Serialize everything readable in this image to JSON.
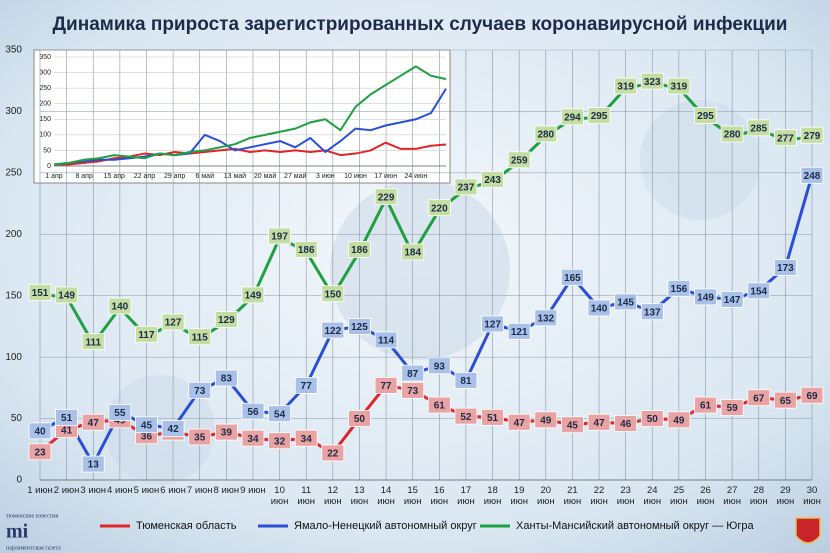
{
  "chart_data": [
    {
      "type": "line",
      "title": "Динамика прироста зарегистрированных случаев коронавирусной инфекции",
      "categories": [
        "1 июн",
        "2 июн",
        "3 июн",
        "4 июн",
        "5 июн",
        "6 июн",
        "7 июн",
        "8 июн",
        "9 июн",
        "10 июн",
        "11 июн",
        "12 июн",
        "13 июн",
        "14 июн",
        "15 июн",
        "16 июн",
        "17 июн",
        "18 июн",
        "19 июн",
        "20 июн",
        "21 июн",
        "22 июн",
        "23 июн",
        "24 июн",
        "25 июн",
        "26 июн",
        "27 июн",
        "28 июн",
        "29 июн",
        "30 июн"
      ],
      "series": [
        {
          "name": "Тюменская область",
          "color": "#e0262b",
          "label_fill": "#eaa3a3",
          "values": [
            23,
            41,
            47,
            49,
            36,
            39,
            35,
            39,
            34,
            32,
            34,
            22,
            50,
            77,
            73,
            61,
            52,
            51,
            47,
            49,
            45,
            47,
            46,
            50,
            49,
            61,
            59,
            67,
            65,
            69
          ]
        },
        {
          "name": "Ямало-Ненецкий автономный округ",
          "color": "#2a4fd6",
          "label_fill": "#a9c1e8",
          "values": [
            40,
            51,
            13,
            55,
            45,
            42,
            73,
            83,
            56,
            54,
            77,
            122,
            125,
            114,
            87,
            93,
            81,
            127,
            121,
            132,
            165,
            140,
            145,
            137,
            156,
            149,
            147,
            154,
            173,
            248
          ]
        },
        {
          "name": "Ханты-Мансийский автономный округ — Югра",
          "color": "#1fa040",
          "label_fill": "#c3dda2",
          "values": [
            151,
            149,
            111,
            140,
            117,
            127,
            115,
            129,
            149,
            197,
            186,
            150,
            186,
            229,
            184,
            220,
            237,
            243,
            259,
            280,
            294,
            295,
            319,
            323,
            319,
            295,
            280,
            285,
            277,
            279
          ]
        }
      ],
      "ylim": [
        0,
        350
      ],
      "yticks": [
        0,
        50,
        100,
        150,
        200,
        250,
        300,
        350
      ],
      "grid": true,
      "legend": "bottom",
      "logos": [
        "тюменские известия",
        "mi",
        "парламентская газета"
      ]
    },
    {
      "type": "line",
      "categories": [
        "1 апр",
        null,
        "8 апр",
        null,
        "15 апр",
        null,
        "22 апр",
        null,
        "29 апр",
        null,
        "6 май",
        null,
        "13 май",
        null,
        "20 май",
        null,
        "27 май",
        null,
        "3 июн",
        null,
        "10 июн",
        null,
        "17 июн",
        null,
        "24 июн",
        null,
        null
      ],
      "series": [
        {
          "color": "#e0262b",
          "values": [
            5,
            5,
            10,
            15,
            25,
            30,
            40,
            35,
            45,
            40,
            45,
            50,
            55,
            45,
            50,
            45,
            50,
            45,
            50,
            35,
            40,
            50,
            75,
            55,
            55,
            65,
            69
          ]
        },
        {
          "color": "#2a4fd6",
          "values": [
            5,
            10,
            15,
            20,
            20,
            25,
            30,
            40,
            35,
            40,
            100,
            80,
            50,
            60,
            70,
            80,
            60,
            90,
            45,
            80,
            120,
            115,
            130,
            140,
            150,
            170,
            248
          ]
        },
        {
          "color": "#1fa040",
          "values": [
            5,
            10,
            20,
            25,
            35,
            30,
            25,
            40,
            35,
            45,
            50,
            60,
            70,
            90,
            100,
            110,
            120,
            140,
            150,
            115,
            190,
            230,
            260,
            290,
            320,
            290,
            279
          ]
        }
      ],
      "ylim": [
        0,
        350
      ],
      "yticks": [
        0,
        50,
        100,
        150,
        200,
        250,
        300,
        350
      ],
      "grid": true
    }
  ]
}
